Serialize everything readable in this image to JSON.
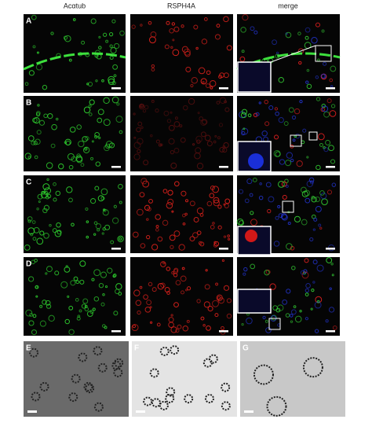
{
  "columns": [
    "Acαtub",
    "RSPH4A",
    "merge"
  ],
  "panels": [
    "A",
    "B",
    "C",
    "D",
    "E",
    "F",
    "G"
  ]
}
